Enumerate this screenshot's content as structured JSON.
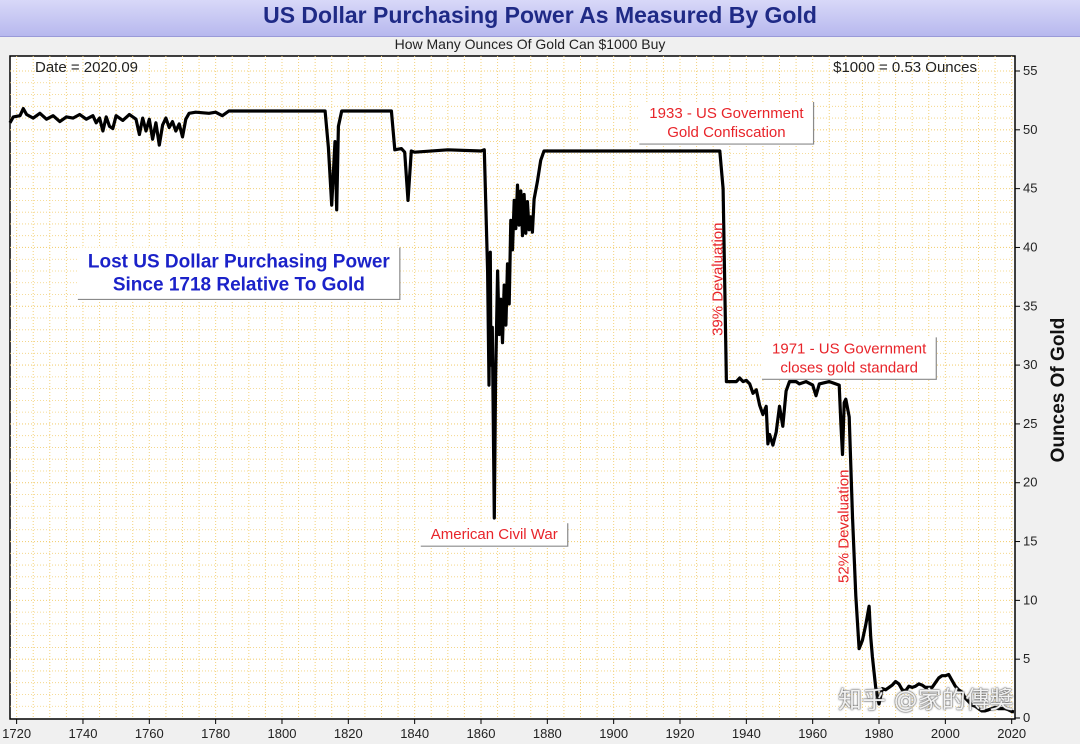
{
  "header": {
    "title": "US Dollar Purchasing Power As Measured By Gold",
    "subtitle": "How Many Ounces Of Gold Can $1000 Buy"
  },
  "chart_data": {
    "type": "line",
    "title": "US Dollar Purchasing Power As Measured By Gold",
    "subtitle": "How Many Ounces Of Gold Can $1000 Buy",
    "xlabel": "",
    "ylabel": "Ounces Of Gold",
    "xlim": [
      1718,
      2021
    ],
    "ylim": [
      0,
      56
    ],
    "x_ticks": [
      1720,
      1740,
      1760,
      1780,
      1800,
      1820,
      1840,
      1860,
      1880,
      1900,
      1920,
      1940,
      1960,
      1980,
      2000,
      2020
    ],
    "y_ticks": [
      0,
      5,
      10,
      15,
      20,
      25,
      30,
      35,
      40,
      45,
      50,
      55
    ],
    "grid": true,
    "date_label": "Date = 2020.09",
    "value_label": "$1000 = 0.53 Ounces",
    "colors": {
      "line": "#000000",
      "grid": "#f3d17a",
      "annotation": "#e8242a",
      "callout": "#1b22c9"
    },
    "series": [
      {
        "name": "Ounces Of Gold per $1000",
        "points": [
          [
            1718,
            50.6
          ],
          [
            1719,
            51.1
          ],
          [
            1721,
            51.2
          ],
          [
            1722,
            51.8
          ],
          [
            1723,
            51.3
          ],
          [
            1725,
            51.0
          ],
          [
            1727,
            51.4
          ],
          [
            1729,
            50.9
          ],
          [
            1731,
            51.2
          ],
          [
            1733,
            50.7
          ],
          [
            1735,
            51.1
          ],
          [
            1737,
            51.0
          ],
          [
            1739,
            51.3
          ],
          [
            1741,
            50.9
          ],
          [
            1743,
            51.2
          ],
          [
            1744,
            50.6
          ],
          [
            1745,
            51.0
          ],
          [
            1746,
            49.9
          ],
          [
            1747,
            51.1
          ],
          [
            1748,
            50.3
          ],
          [
            1749,
            50.1
          ],
          [
            1750,
            51.2
          ],
          [
            1752,
            50.8
          ],
          [
            1754,
            51.3
          ],
          [
            1756,
            50.9
          ],
          [
            1757,
            49.6
          ],
          [
            1758,
            51.0
          ],
          [
            1759,
            49.9
          ],
          [
            1760,
            50.9
          ],
          [
            1761,
            49.2
          ],
          [
            1762,
            50.6
          ],
          [
            1763,
            48.7
          ],
          [
            1764,
            50.4
          ],
          [
            1765,
            51.0
          ],
          [
            1766,
            50.2
          ],
          [
            1767,
            50.7
          ],
          [
            1768,
            49.9
          ],
          [
            1769,
            50.5
          ],
          [
            1770,
            49.4
          ],
          [
            1771,
            50.9
          ],
          [
            1772,
            51.4
          ],
          [
            1774,
            51.5
          ],
          [
            1778,
            51.4
          ],
          [
            1780,
            51.5
          ],
          [
            1782,
            51.2
          ],
          [
            1784,
            51.6
          ],
          [
            1790,
            51.6
          ],
          [
            1800,
            51.6
          ],
          [
            1810,
            51.6
          ],
          [
            1813,
            51.6
          ],
          [
            1814,
            48.5
          ],
          [
            1815,
            43.6
          ],
          [
            1816,
            49.0
          ],
          [
            1816.5,
            43.2
          ],
          [
            1817,
            50.3
          ],
          [
            1818,
            51.6
          ],
          [
            1825,
            51.6
          ],
          [
            1833,
            51.6
          ],
          [
            1834,
            48.3
          ],
          [
            1836,
            48.4
          ],
          [
            1837,
            48.1
          ],
          [
            1838,
            44.0
          ],
          [
            1839,
            48.2
          ],
          [
            1840,
            48.1
          ],
          [
            1850,
            48.3
          ],
          [
            1860,
            48.2
          ],
          [
            1861,
            48.3
          ],
          [
            1862,
            38.0
          ],
          [
            1862.4,
            28.3
          ],
          [
            1862.8,
            39.6
          ],
          [
            1863,
            30.0
          ],
          [
            1863.4,
            33.2
          ],
          [
            1864,
            17.0
          ],
          [
            1864.4,
            28.9
          ],
          [
            1865,
            38.0
          ],
          [
            1865.5,
            32.6
          ],
          [
            1866,
            35.6
          ],
          [
            1866.5,
            31.9
          ],
          [
            1867,
            36.8
          ],
          [
            1867.5,
            33.4
          ],
          [
            1868,
            38.6
          ],
          [
            1868.5,
            35.2
          ],
          [
            1869,
            42.3
          ],
          [
            1869.5,
            39.8
          ],
          [
            1870,
            44.0
          ],
          [
            1870.5,
            41.6
          ],
          [
            1871,
            45.3
          ],
          [
            1871.5,
            41.9
          ],
          [
            1872,
            44.8
          ],
          [
            1872.5,
            41.0
          ],
          [
            1873,
            44.5
          ],
          [
            1873.5,
            41.2
          ],
          [
            1874,
            43.9
          ],
          [
            1874.5,
            41.5
          ],
          [
            1875,
            42.6
          ],
          [
            1875.5,
            41.3
          ],
          [
            1876,
            44.1
          ],
          [
            1877,
            45.6
          ],
          [
            1878,
            47.4
          ],
          [
            1879,
            48.2
          ],
          [
            1890,
            48.2
          ],
          [
            1900,
            48.2
          ],
          [
            1910,
            48.2
          ],
          [
            1920,
            48.2
          ],
          [
            1932,
            48.2
          ],
          [
            1933,
            45.0
          ],
          [
            1934,
            28.6
          ],
          [
            1935,
            28.6
          ],
          [
            1937,
            28.6
          ],
          [
            1938,
            28.9
          ],
          [
            1939,
            28.6
          ],
          [
            1940,
            28.7
          ],
          [
            1941,
            28.4
          ],
          [
            1942,
            27.6
          ],
          [
            1943,
            27.9
          ],
          [
            1944,
            26.6
          ],
          [
            1945,
            25.8
          ],
          [
            1946,
            26.5
          ],
          [
            1946.5,
            23.3
          ],
          [
            1947,
            24.1
          ],
          [
            1948,
            23.2
          ],
          [
            1949,
            24.3
          ],
          [
            1950,
            26.5
          ],
          [
            1951,
            24.8
          ],
          [
            1952,
            27.8
          ],
          [
            1953,
            28.6
          ],
          [
            1955,
            28.6
          ],
          [
            1956,
            28.4
          ],
          [
            1958,
            28.6
          ],
          [
            1960,
            28.3
          ],
          [
            1961,
            27.4
          ],
          [
            1962,
            28.4
          ],
          [
            1965,
            28.6
          ],
          [
            1968,
            28.3
          ],
          [
            1968.5,
            25.0
          ],
          [
            1969,
            22.4
          ],
          [
            1969.5,
            26.8
          ],
          [
            1970,
            27.1
          ],
          [
            1971,
            25.6
          ],
          [
            1972,
            17.1
          ],
          [
            1973,
            10.4
          ],
          [
            1974,
            5.9
          ],
          [
            1975,
            6.6
          ],
          [
            1976,
            7.9
          ],
          [
            1977,
            9.5
          ],
          [
            1977.5,
            6.9
          ],
          [
            1978,
            5.2
          ],
          [
            1979,
            2.6
          ],
          [
            1980,
            1.2
          ],
          [
            1981,
            2.5
          ],
          [
            1982,
            2.4
          ],
          [
            1983,
            2.6
          ],
          [
            1984,
            2.8
          ],
          [
            1985,
            3.1
          ],
          [
            1986,
            2.9
          ],
          [
            1987,
            2.4
          ],
          [
            1988,
            2.3
          ],
          [
            1989,
            2.7
          ],
          [
            1990,
            2.6
          ],
          [
            1991,
            2.7
          ],
          [
            1992,
            2.9
          ],
          [
            1993,
            2.8
          ],
          [
            1994,
            2.6
          ],
          [
            1995,
            2.6
          ],
          [
            1996,
            2.6
          ],
          [
            1997,
            3.0
          ],
          [
            1998,
            3.4
          ],
          [
            1999,
            3.6
          ],
          [
            2000,
            3.6
          ],
          [
            2001,
            3.7
          ],
          [
            2002,
            3.2
          ],
          [
            2003,
            2.7
          ],
          [
            2004,
            2.4
          ],
          [
            2005,
            2.2
          ],
          [
            2006,
            1.7
          ],
          [
            2007,
            1.4
          ],
          [
            2008,
            1.1
          ],
          [
            2009,
            1.0
          ],
          [
            2010,
            0.8
          ],
          [
            2011,
            0.6
          ],
          [
            2012,
            0.6
          ],
          [
            2013,
            0.7
          ],
          [
            2014,
            0.8
          ],
          [
            2015,
            0.9
          ],
          [
            2016,
            0.8
          ],
          [
            2017,
            0.8
          ],
          [
            2018,
            0.8
          ],
          [
            2019,
            0.7
          ],
          [
            2020,
            0.55
          ],
          [
            2020.7,
            0.53
          ]
        ]
      }
    ],
    "annotations": [
      {
        "id": "civil-war",
        "lines": [
          "American Civil War"
        ],
        "x": 1864,
        "y": 15.2,
        "style": "box",
        "color": "red"
      },
      {
        "id": "confiscation",
        "lines": [
          "1933 - US Government",
          "Gold Confiscation"
        ],
        "x": 1934,
        "y": 51.0,
        "style": "box",
        "color": "red"
      },
      {
        "id": "gold-standard",
        "lines": [
          "1971 - US Government",
          "closes gold standard"
        ],
        "x": 1971,
        "y": 31.0,
        "style": "box",
        "color": "red"
      },
      {
        "id": "devaluation-39",
        "lines": [
          "39% Devaluation"
        ],
        "x": 1934,
        "y": 37.3,
        "style": "vertical",
        "color": "red"
      },
      {
        "id": "devaluation-52",
        "lines": [
          "52% Devaluation"
        ],
        "x": 1972,
        "y": 16.3,
        "style": "vertical",
        "color": "red"
      },
      {
        "id": "callout",
        "lines": [
          "Lost US Dollar Purchasing Power",
          "Since 1718 Relative To Gold"
        ],
        "x": 1787,
        "y": 38.3,
        "style": "box",
        "color": "blue"
      }
    ]
  },
  "watermark": "知乎 @家的傳奬"
}
